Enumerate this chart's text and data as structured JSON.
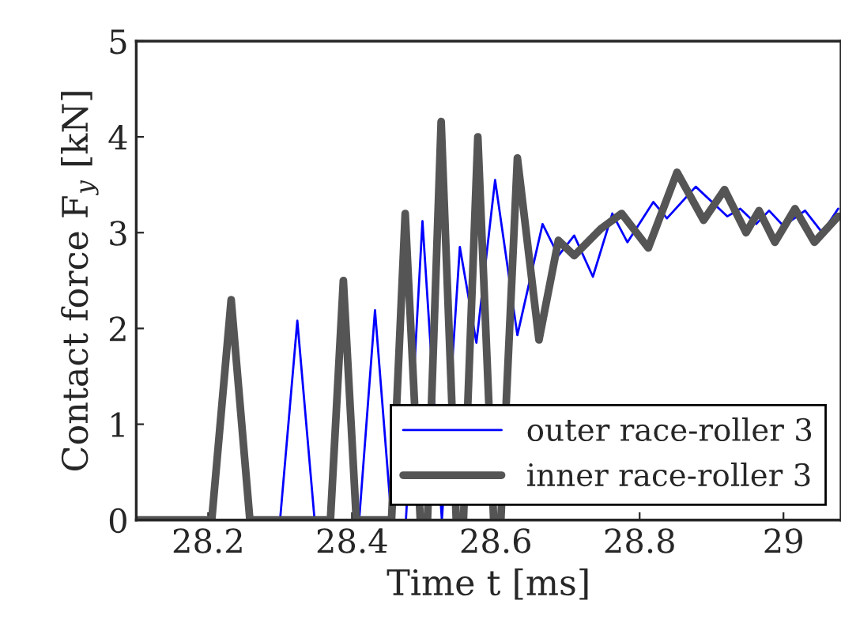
{
  "chart_data": {
    "type": "line",
    "xlabel": "Time t [ms]",
    "ylabel": "Contact force F$_{y}$ [kN]",
    "xlim": [
      28.1,
      29.08
    ],
    "ylim": [
      0,
      5
    ],
    "xticks": [
      28.2,
      28.4,
      28.6,
      28.8,
      29
    ],
    "yticks": [
      0,
      1,
      2,
      3,
      4,
      5
    ],
    "grid": false,
    "legend": "bottom right",
    "series": [
      {
        "name": "outer race-roller 3",
        "color": "#0000ff",
        "x": [
          28.1,
          28.3,
          28.324,
          28.348,
          28.41,
          28.432,
          28.455,
          28.475,
          28.498,
          28.525,
          28.55,
          28.573,
          28.599,
          28.63,
          28.665,
          28.687,
          28.709,
          28.735,
          28.762,
          28.783,
          28.819,
          28.838,
          28.878,
          28.922,
          28.94,
          28.962,
          28.98,
          29.0,
          29.03,
          29.054,
          29.076
        ],
        "values": [
          0,
          0,
          2.08,
          0,
          0,
          2.19,
          0,
          0,
          3.12,
          0,
          2.85,
          1.85,
          3.55,
          1.93,
          3.09,
          2.76,
          2.97,
          2.54,
          3.2,
          2.9,
          3.32,
          3.15,
          3.48,
          3.17,
          3.25,
          3.09,
          3.23,
          3.07,
          3.23,
          3.0,
          3.25
        ]
      },
      {
        "name": "inner race-roller 3",
        "color": "#555555",
        "x": [
          28.1,
          28.205,
          28.232,
          28.258,
          28.37,
          28.388,
          28.406,
          28.455,
          28.474,
          28.495,
          28.505,
          28.524,
          28.545,
          28.555,
          28.575,
          28.597,
          28.607,
          28.63,
          28.66,
          28.687,
          28.709,
          28.746,
          28.775,
          28.812,
          28.852,
          28.889,
          28.918,
          28.948,
          28.966,
          28.988,
          29.016,
          29.043,
          29.076
        ],
        "values": [
          0,
          0,
          2.3,
          0,
          0,
          2.5,
          0,
          0,
          3.2,
          0,
          0,
          4.16,
          0,
          0,
          4.0,
          0,
          0,
          3.78,
          1.88,
          2.92,
          2.76,
          3.04,
          3.2,
          2.84,
          3.63,
          3.13,
          3.45,
          3.0,
          3.23,
          2.9,
          3.25,
          2.9,
          3.17
        ]
      }
    ]
  }
}
